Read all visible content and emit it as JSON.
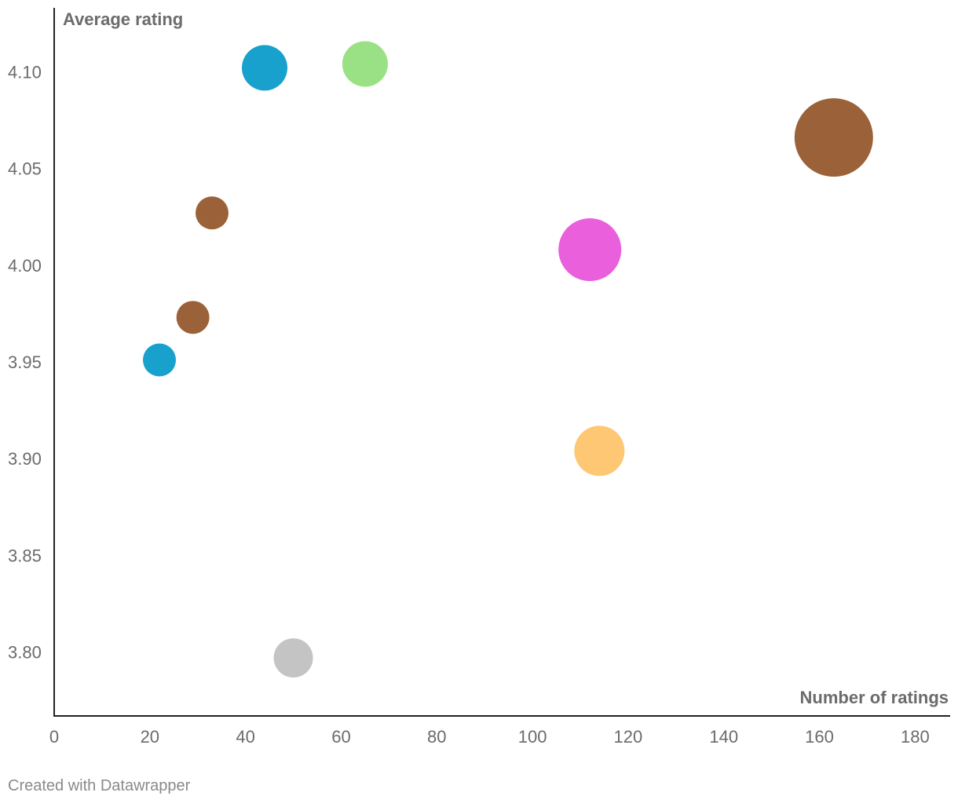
{
  "chart_data": {
    "type": "scatter",
    "title": "",
    "xlabel": "Number of ratings",
    "ylabel": "Average rating",
    "xlim": [
      0,
      187
    ],
    "ylim": [
      3.767,
      4.133
    ],
    "x_ticks": [
      0,
      20,
      40,
      60,
      80,
      100,
      120,
      140,
      160,
      180
    ],
    "x_tick_labels": [
      "0",
      "20",
      "40",
      "60",
      "80",
      "100",
      "120",
      "140",
      "160",
      "180"
    ],
    "y_ticks": [
      3.8,
      3.85,
      3.9,
      3.95,
      4.0,
      4.05,
      4.1
    ],
    "y_tick_labels": [
      "3.80",
      "3.85",
      "3.90",
      "3.95",
      "4.00",
      "4.05",
      "4.10"
    ],
    "grid": false,
    "legend": "none",
    "points": [
      {
        "x": 44,
        "y": 4.102,
        "size": 29,
        "color": "#18a1cd"
      },
      {
        "x": 65,
        "y": 4.104,
        "size": 29,
        "color": "#99e184"
      },
      {
        "x": 163,
        "y": 4.066,
        "size": 50,
        "color": "#9b6239"
      },
      {
        "x": 33,
        "y": 4.027,
        "size": 21,
        "color": "#9b6239"
      },
      {
        "x": 112,
        "y": 4.008,
        "size": 40,
        "color": "#ea5fdc"
      },
      {
        "x": 29,
        "y": 3.973,
        "size": 21,
        "color": "#9b6239"
      },
      {
        "x": 22,
        "y": 3.951,
        "size": 21,
        "color": "#18a1cd"
      },
      {
        "x": 114,
        "y": 3.904,
        "size": 32,
        "color": "#fec774"
      },
      {
        "x": 50,
        "y": 3.797,
        "size": 25,
        "color": "#c4c4c4"
      }
    ]
  },
  "footer": {
    "credit": "Created with Datawrapper"
  }
}
